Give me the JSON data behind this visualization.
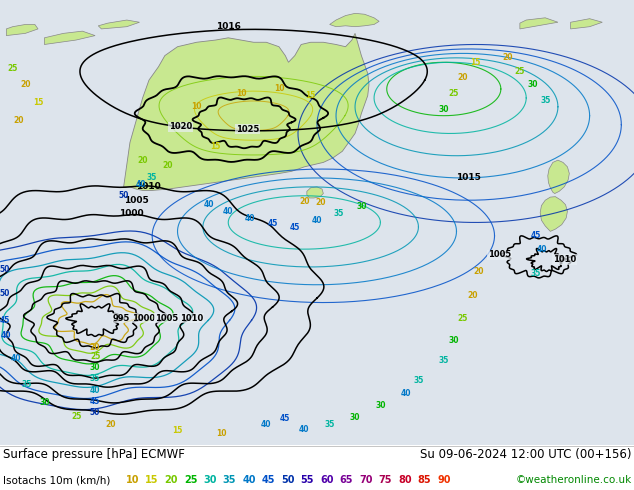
{
  "title_left": "Surface pressure [hPa] ECMWF",
  "title_right": "Su 09-06-2024 12:00 UTC (00+156)",
  "legend_label": "Isotachs 10m (km/h)",
  "copyright": "©weatheronline.co.uk",
  "legend_values": [
    "10",
    "15",
    "20",
    "25",
    "30",
    "35",
    "40",
    "45",
    "50",
    "55",
    "60",
    "65",
    "70",
    "75",
    "80",
    "85",
    "90"
  ],
  "legend_colors": [
    "#c8a000",
    "#c8c800",
    "#78c800",
    "#00b400",
    "#00b4a0",
    "#0096b4",
    "#0078c8",
    "#0050c8",
    "#0032aa",
    "#2800aa",
    "#5000aa",
    "#780096",
    "#960078",
    "#aa0050",
    "#c80028",
    "#dc1400",
    "#f03200"
  ],
  "bg_color": "#ffffff",
  "map_bg": "#e8eef4",
  "bottom_bg": "#f5f5f5",
  "land_color": "#c8e890",
  "figsize": [
    6.34,
    4.9
  ],
  "dpi": 100,
  "title_fontsize": 8.5,
  "legend_fontsize": 7.5,
  "map_gray": "#c0c8d0"
}
